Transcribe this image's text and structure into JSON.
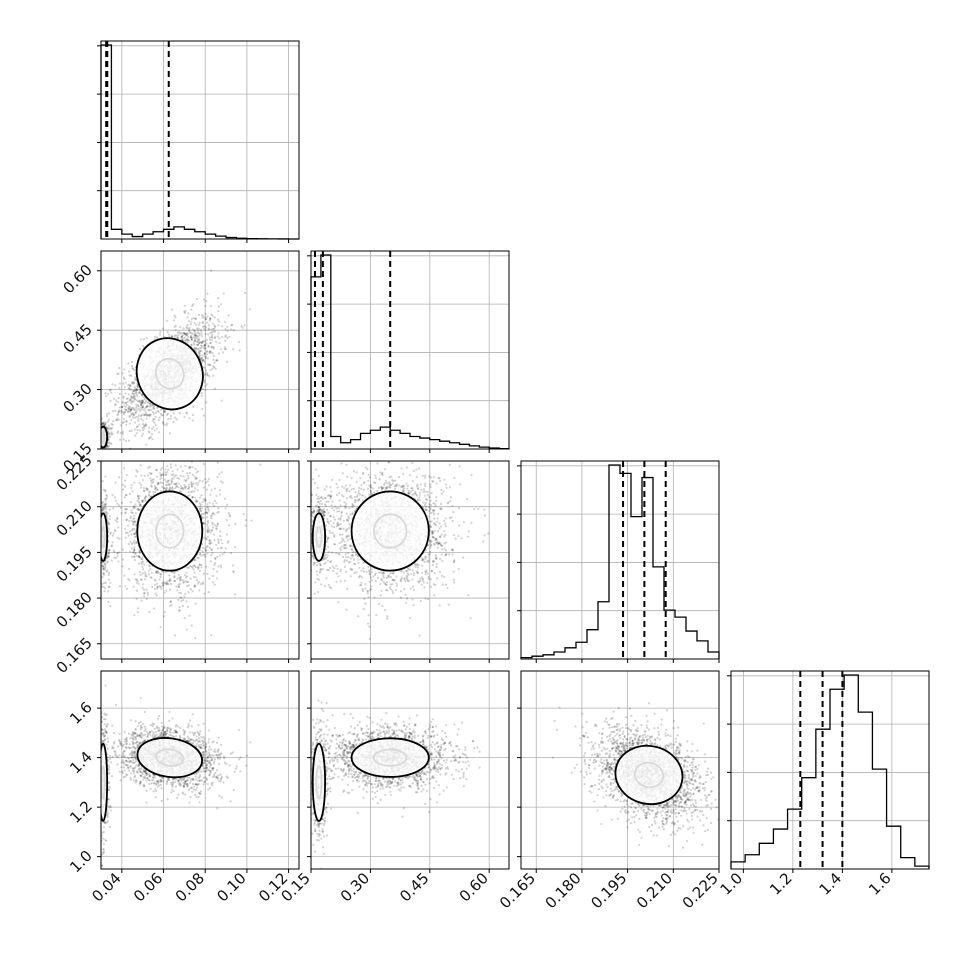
{
  "chart_data": {
    "type": "corner",
    "title": "",
    "grid": true,
    "parameters": [
      {
        "key": "p1",
        "xlim": [
          0.03,
          0.125
        ],
        "ticks": [
          0.04,
          0.06,
          0.08,
          0.1,
          0.12
        ],
        "tick_labels": [
          "0.04",
          "0.06",
          "0.08",
          "0.10",
          "0.12"
        ],
        "quantiles": [
          0.0325,
          0.033,
          0.0625
        ]
      },
      {
        "key": "p2",
        "xlim": [
          0.15,
          0.65
        ],
        "ticks": [
          0.15,
          0.3,
          0.45,
          0.6
        ],
        "tick_labels": [
          "0.15",
          "0.30",
          "0.45",
          "0.60"
        ],
        "quantiles": [
          0.16,
          0.18,
          0.35
        ]
      },
      {
        "key": "p3",
        "xlim": [
          0.16,
          0.225
        ],
        "ticks": [
          0.165,
          0.18,
          0.195,
          0.21,
          0.225
        ],
        "tick_labels": [
          "0.165",
          "0.180",
          "0.195",
          "0.210",
          "0.225"
        ],
        "quantiles": [
          0.1935,
          0.2005,
          0.2075
        ]
      },
      {
        "key": "p4",
        "xlim": [
          0.95,
          1.75
        ],
        "ticks": [
          1.0,
          1.2,
          1.4,
          1.6
        ],
        "tick_labels": [
          "1.0",
          "1.2",
          "1.4",
          "1.6"
        ],
        "quantiles": [
          1.23,
          1.32,
          1.4
        ]
      }
    ],
    "histograms": [
      {
        "param": 0,
        "bins": [
          0.03,
          0.125
        ],
        "heights": [
          80,
          4,
          2,
          1,
          2,
          3,
          4,
          5,
          4,
          3,
          2,
          1.2,
          0.6,
          0.3,
          0.15,
          0.1,
          0.05,
          0.02,
          0.01
        ]
      },
      {
        "param": 1,
        "bins": [
          0.15,
          0.65
        ],
        "heights": [
          55,
          62,
          4,
          2,
          3,
          5,
          6,
          7,
          6,
          5,
          4,
          3.5,
          3,
          2.5,
          2,
          1.5,
          1,
          0.6,
          0.3,
          0.1
        ]
      },
      {
        "param": 2,
        "bins": [
          0.16,
          0.225
        ],
        "heights": [
          0.2,
          0.4,
          0.6,
          1.0,
          1.6,
          2.4,
          4.2,
          8.2,
          27.8,
          26.6,
          20.4,
          26.0,
          13.2,
          7.0,
          6.0,
          4.0,
          2.6,
          1.0
        ]
      },
      {
        "param": 3,
        "bins": [
          0.95,
          1.75
        ],
        "heights": [
          0.5,
          1.0,
          1.8,
          2.8,
          4.2,
          6.4,
          9.8,
          12.6,
          13.6,
          11.0,
          7.0,
          3.0,
          0.8,
          0.2
        ]
      }
    ],
    "panels": [
      {
        "row": 1,
        "col": 0,
        "clusters": [
          {
            "center": [
              0.063,
              0.34
            ],
            "spread": [
              0.012,
              0.07
            ],
            "corr": 0.62,
            "n": 1900
          },
          {
            "center": [
              0.031,
              0.18
            ],
            "spread": [
              0.0015,
              0.02
            ],
            "corr": 0,
            "n": 400
          }
        ]
      },
      {
        "row": 2,
        "col": 0,
        "clusters": [
          {
            "center": [
              0.063,
              0.202
            ],
            "spread": [
              0.012,
              0.01
            ],
            "corr": 0,
            "n": 1900
          },
          {
            "center": [
              0.031,
              0.2
            ],
            "spread": [
              0.0015,
              0.006
            ],
            "corr": 0,
            "n": 400
          }
        ]
      },
      {
        "row": 2,
        "col": 1,
        "clusters": [
          {
            "center": [
              0.35,
              0.202
            ],
            "spread": [
              0.075,
              0.01
            ],
            "corr": 0,
            "n": 1900
          },
          {
            "center": [
              0.17,
              0.2
            ],
            "spread": [
              0.012,
              0.006
            ],
            "corr": 0,
            "n": 400
          }
        ]
      },
      {
        "row": 3,
        "col": 0,
        "clusters": [
          {
            "center": [
              0.063,
              1.4
            ],
            "spread": [
              0.012,
              0.06
            ],
            "corr": -0.2,
            "n": 1900
          },
          {
            "center": [
              0.031,
              1.3
            ],
            "spread": [
              0.0015,
              0.12
            ],
            "corr": 0,
            "n": 400
          }
        ]
      },
      {
        "row": 3,
        "col": 1,
        "clusters": [
          {
            "center": [
              0.35,
              1.4
            ],
            "spread": [
              0.075,
              0.06
            ],
            "corr": 0,
            "n": 1900
          },
          {
            "center": [
              0.17,
              1.3
            ],
            "spread": [
              0.012,
              0.12
            ],
            "corr": 0,
            "n": 400
          }
        ]
      },
      {
        "row": 3,
        "col": 2,
        "clusters": [
          {
            "center": [
              0.202,
              1.33
            ],
            "spread": [
              0.0085,
              0.09
            ],
            "corr": -0.3,
            "n": 2300
          }
        ]
      }
    ]
  }
}
